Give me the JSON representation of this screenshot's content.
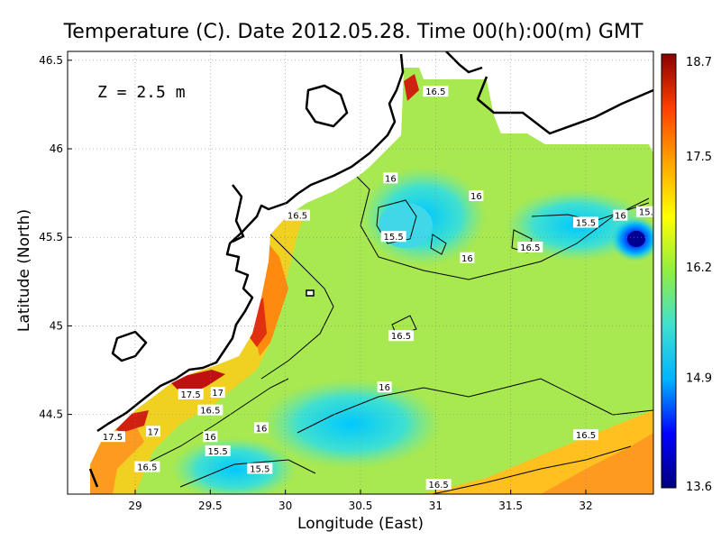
{
  "chart_data": {
    "type": "heatmap",
    "title": "Temperature (C). Date 2012.05.28. Time 00(h):00(m) GMT",
    "annotation": "Z  =  2.5  m",
    "xlabel": "Longitude (East)",
    "ylabel": "Latitude (North)",
    "xlim": [
      28.55,
      32.45
    ],
    "ylim": [
      44.05,
      46.55
    ],
    "x_ticks": [
      "29",
      "29.5",
      "30",
      "30.5",
      "31",
      "31.5",
      "32"
    ],
    "y_ticks": [
      "44.5",
      "45",
      "45.5",
      "46",
      "46.5"
    ],
    "grid": true,
    "colorbar": {
      "ticks": [
        "13.6",
        "14.9",
        "16.2",
        "17.5",
        "18.7"
      ],
      "range": [
        13.6,
        18.7
      ],
      "colors": [
        "#000080",
        "#0000ff",
        "#00b4ff",
        "#40e0d0",
        "#90ee40",
        "#ffff00",
        "#ffa500",
        "#ff4000",
        "#8b0000"
      ]
    },
    "contour_labels": [
      {
        "text": "16.5",
        "lon": 30.08,
        "lat": 45.62
      },
      {
        "text": "16",
        "lon": 30.7,
        "lat": 45.83
      },
      {
        "text": "16",
        "lon": 31.27,
        "lat": 45.73
      },
      {
        "text": "15.5",
        "lon": 30.72,
        "lat": 45.5
      },
      {
        "text": "16",
        "lon": 31.21,
        "lat": 45.38
      },
      {
        "text": "16.5",
        "lon": 31.63,
        "lat": 45.44
      },
      {
        "text": "15.5",
        "lon": 32.0,
        "lat": 45.58
      },
      {
        "text": "16",
        "lon": 32.23,
        "lat": 45.62
      },
      {
        "text": "15.5",
        "lon": 32.42,
        "lat": 45.64
      },
      {
        "text": "16.5",
        "lon": 30.77,
        "lat": 44.94
      },
      {
        "text": "16",
        "lon": 30.66,
        "lat": 44.65
      },
      {
        "text": "16.5",
        "lon": 31.0,
        "lat": 46.32
      },
      {
        "text": "17.5",
        "lon": 29.37,
        "lat": 44.61
      },
      {
        "text": "17",
        "lon": 29.55,
        "lat": 44.62
      },
      {
        "text": "16.5",
        "lon": 29.5,
        "lat": 44.52
      },
      {
        "text": "16",
        "lon": 29.84,
        "lat": 44.42
      },
      {
        "text": "17.5",
        "lon": 28.85,
        "lat": 44.37
      },
      {
        "text": "17",
        "lon": 29.12,
        "lat": 44.4
      },
      {
        "text": "16",
        "lon": 29.5,
        "lat": 44.37
      },
      {
        "text": "15.5",
        "lon": 29.55,
        "lat": 44.29
      },
      {
        "text": "15.5",
        "lon": 29.83,
        "lat": 44.19
      },
      {
        "text": "16.5",
        "lon": 29.08,
        "lat": 44.2
      },
      {
        "text": "16.5",
        "lon": 32.0,
        "lat": 44.38
      },
      {
        "text": "16.5",
        "lon": 31.02,
        "lat": 44.1
      }
    ]
  }
}
